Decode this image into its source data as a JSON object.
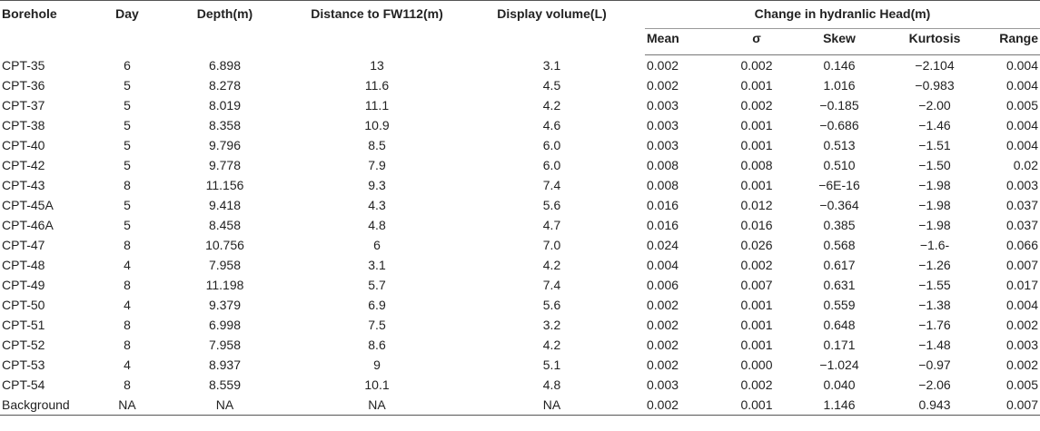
{
  "headers": {
    "borehole": "Borehole",
    "day": "Day",
    "depth": "Depth(m)",
    "distance": "Distance to FW112(m)",
    "display_volume": "Display volume(L)",
    "change_group": "Change in hydranlic Head(m)",
    "mean": "Mean",
    "sigma": "σ",
    "skew": "Skew",
    "kurtosis": "Kurtosis",
    "range": "Range"
  },
  "rows": [
    [
      "CPT-35",
      "6",
      "6.898",
      "13",
      "3.1",
      "0.002",
      "0.002",
      "0.146",
      "−2.104",
      "0.004"
    ],
    [
      "CPT-36",
      "5",
      "8.278",
      "11.6",
      "4.5",
      "0.002",
      "0.001",
      "1.016",
      "−0.983",
      "0.004"
    ],
    [
      "CPT-37",
      "5",
      "8.019",
      "11.1",
      "4.2",
      "0.003",
      "0.002",
      "−0.185",
      "−2.00",
      "0.005"
    ],
    [
      "CPT-38",
      "5",
      "8.358",
      "10.9",
      "4.6",
      "0.003",
      "0.001",
      "−0.686",
      "−1.46",
      "0.004"
    ],
    [
      "CPT-40",
      "5",
      "9.796",
      "8.5",
      "6.0",
      "0.003",
      "0.001",
      "0.513",
      "−1.51",
      "0.004"
    ],
    [
      "CPT-42",
      "5",
      "9.778",
      "7.9",
      "6.0",
      "0.008",
      "0.008",
      "0.510",
      "−1.50",
      "0.02"
    ],
    [
      "CPT-43",
      "8",
      "11.156",
      "9.3",
      "7.4",
      "0.008",
      "0.001",
      "−6E-16",
      "−1.98",
      "0.003"
    ],
    [
      "CPT-45A",
      "5",
      "9.418",
      "4.3",
      "5.6",
      "0.016",
      "0.012",
      "−0.364",
      "−1.98",
      "0.037"
    ],
    [
      "CPT-46A",
      "5",
      "8.458",
      "4.8",
      "4.7",
      "0.016",
      "0.016",
      "0.385",
      "−1.98",
      "0.037"
    ],
    [
      "CPT-47",
      "8",
      "10.756",
      "6",
      "7.0",
      "0.024",
      "0.026",
      "0.568",
      "−1.6-",
      "0.066"
    ],
    [
      "CPT-48",
      "4",
      "7.958",
      "3.1",
      "4.2",
      "0.004",
      "0.002",
      "0.617",
      "−1.26",
      "0.007"
    ],
    [
      "CPT-49",
      "8",
      "11.198",
      "5.7",
      "7.4",
      "0.006",
      "0.007",
      "0.631",
      "−1.55",
      "0.017"
    ],
    [
      "CPT-50",
      "4",
      "9.379",
      "6.9",
      "5.6",
      "0.002",
      "0.001",
      "0.559",
      "−1.38",
      "0.004"
    ],
    [
      "CPT-51",
      "8",
      "6.998",
      "7.5",
      "3.2",
      "0.002",
      "0.001",
      "0.648",
      "−1.76",
      "0.002"
    ],
    [
      "CPT-52",
      "8",
      "7.958",
      "8.6",
      "4.2",
      "0.002",
      "0.001",
      "0.171",
      "−1.48",
      "0.003"
    ],
    [
      "CPT-53",
      "4",
      "8.937",
      "9",
      "5.1",
      "0.002",
      "0.000",
      "−1.024",
      "−0.97",
      "0.002"
    ],
    [
      "CPT-54",
      "8",
      "8.559",
      "10.1",
      "4.8",
      "0.003",
      "0.002",
      "0.040",
      "−2.06",
      "0.005"
    ],
    [
      "Background",
      "NA",
      "NA",
      "NA",
      "NA",
      "0.002",
      "0.001",
      "1.146",
      "0.943",
      "0.007"
    ]
  ]
}
